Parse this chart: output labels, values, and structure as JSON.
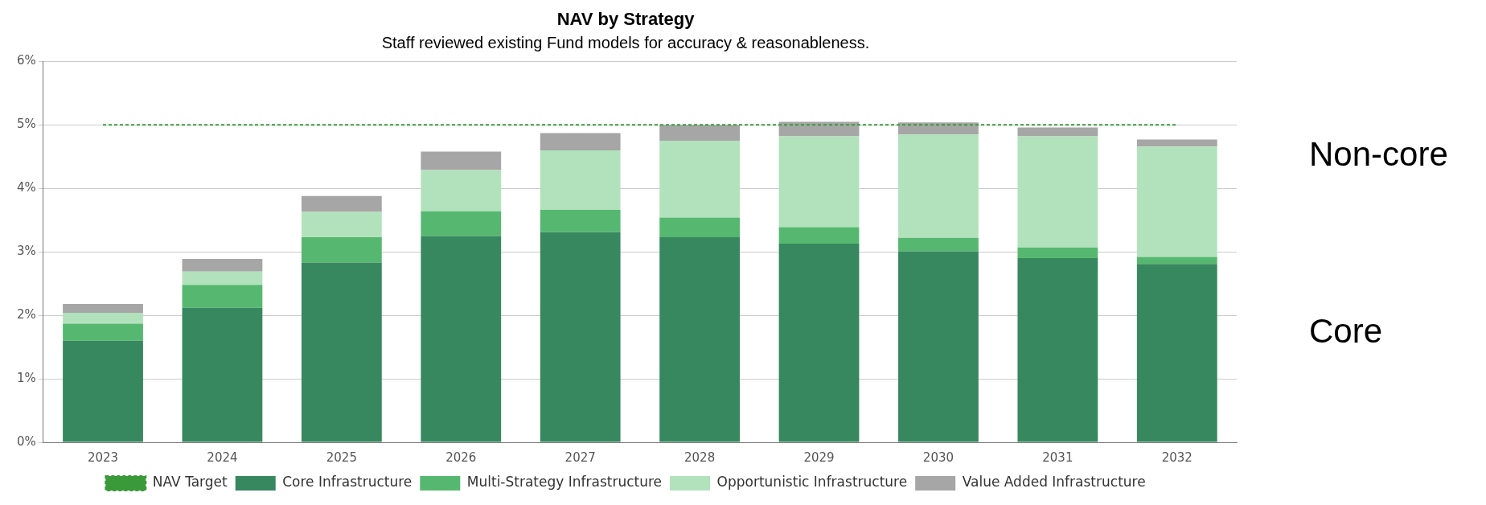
{
  "chart_data": {
    "type": "bar",
    "title": "NAV by Strategy",
    "subtitle": "Staff reviewed existing Fund models for accuracy & reasonableness.",
    "categories": [
      "2023",
      "2024",
      "2025",
      "2026",
      "2027",
      "2028",
      "2029",
      "2030",
      "2031",
      "2032"
    ],
    "stacked": true,
    "series": [
      {
        "name": "Core Infrastructure",
        "color": "#37885e",
        "values": [
          1.6,
          2.12,
          2.83,
          3.25,
          3.31,
          3.23,
          3.13,
          3.01,
          2.9,
          2.81
        ]
      },
      {
        "name": "Multi-Strategy Infrastructure",
        "color": "#56b870",
        "values": [
          0.27,
          0.36,
          0.4,
          0.39,
          0.35,
          0.31,
          0.26,
          0.21,
          0.17,
          0.11
        ]
      },
      {
        "name": "Opportunistic Infrastructure",
        "color": "#b2e2bc",
        "values": [
          0.17,
          0.21,
          0.4,
          0.65,
          0.94,
          1.21,
          1.43,
          1.63,
          1.75,
          1.74
        ]
      },
      {
        "name": "Value Added Infrastructure",
        "color": "#a6a6a6",
        "values": [
          0.14,
          0.2,
          0.25,
          0.29,
          0.27,
          0.25,
          0.23,
          0.19,
          0.14,
          0.11
        ]
      },
      {
        "name": "NAV Target",
        "type": "line",
        "color": "#3a9a3a",
        "line_style": "dashed",
        "marker": "none",
        "values": [
          5,
          5,
          5,
          5,
          5,
          5,
          5,
          5,
          5,
          5
        ]
      }
    ],
    "ylim": [
      0,
      6
    ],
    "yticks": [
      {
        "value": 0,
        "label": "0%"
      },
      {
        "value": 1,
        "label": "1%"
      },
      {
        "value": 2,
        "label": "2%"
      },
      {
        "value": 3,
        "label": "3%"
      },
      {
        "value": 4,
        "label": "4%"
      },
      {
        "value": 5,
        "label": "5%"
      },
      {
        "value": 6,
        "label": "6%"
      }
    ],
    "grid": "y",
    "legend": "bottom",
    "annotations": [
      "Non-core",
      "Core"
    ]
  }
}
